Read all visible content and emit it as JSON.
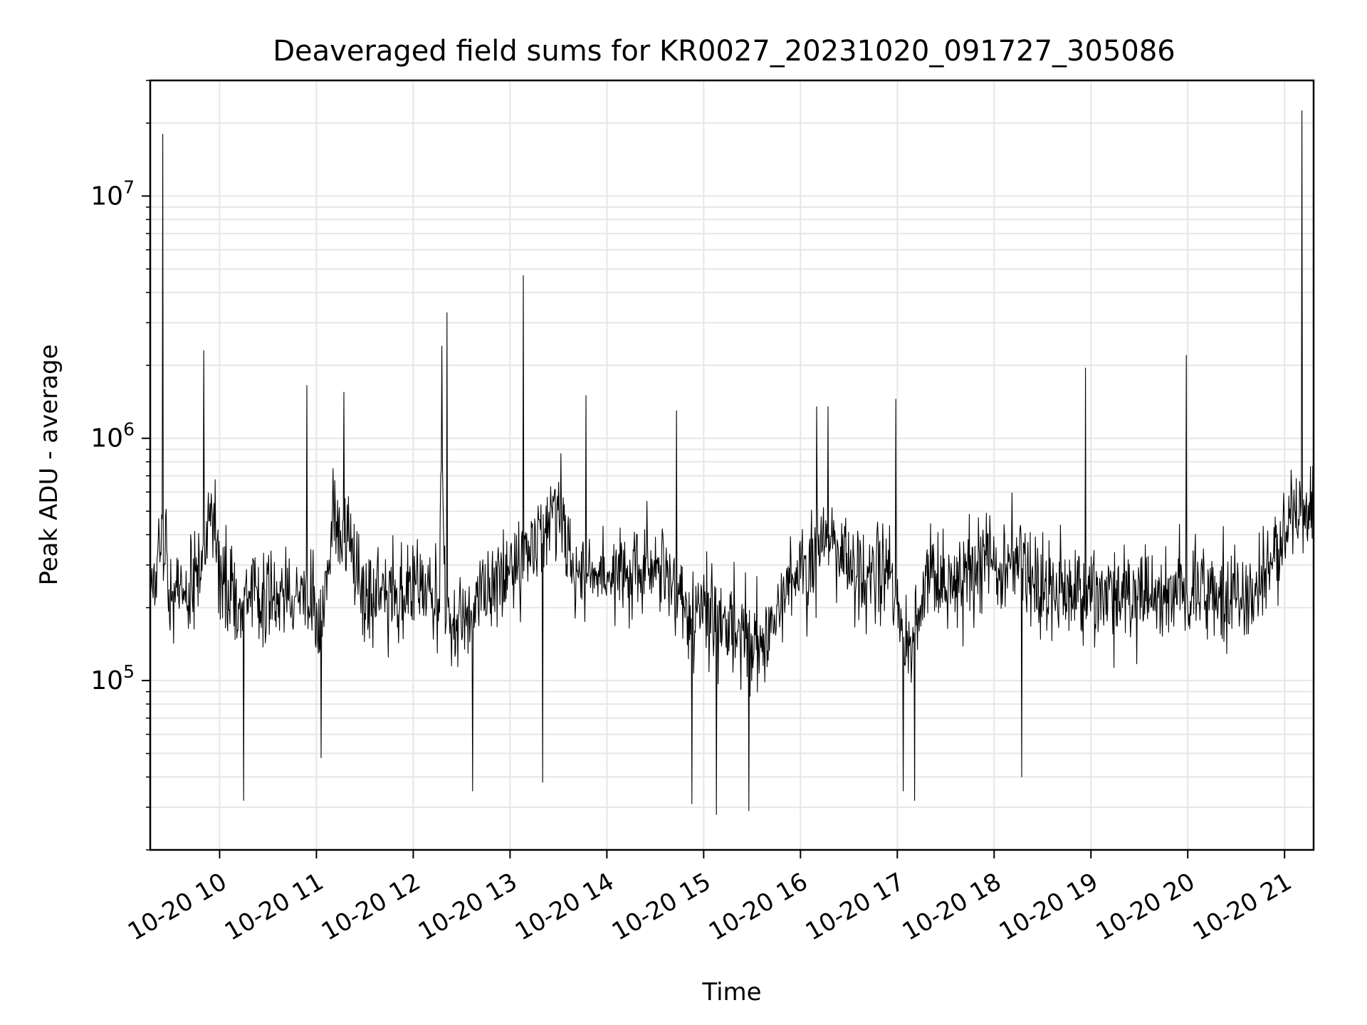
{
  "chart_data": {
    "type": "line",
    "title": "Deaveraged field sums for KR0027_20231020_091727_305086",
    "xlabel": "Time",
    "ylabel": "Peak ADU - average",
    "yscale": "log",
    "xlim": [
      "2023-10-20 09:17",
      "2023-10-20 21:18"
    ],
    "ylim": [
      20000,
      30000000
    ],
    "grid": true,
    "line_color": "#000000",
    "x_tick_labels": [
      "10-20 10",
      "10-20 11",
      "10-20 12",
      "10-20 13",
      "10-20 14",
      "10-20 15",
      "10-20 16",
      "10-20 17",
      "10-20 18",
      "10-20 19",
      "10-20 20",
      "10-20 21"
    ],
    "y_tick_labels": [
      {
        "base": "10",
        "exp": "5"
      },
      {
        "base": "10",
        "exp": "6"
      },
      {
        "base": "10",
        "exp": "7"
      }
    ],
    "series": [
      {
        "x": [
          "2023-10-20 09:17",
          "2023-10-20 09:20",
          "2023-10-20 09:23",
          "2023-10-20 09:25",
          "2023-10-20 09:27",
          "2023-10-20 09:30",
          "2023-10-20 09:33",
          "2023-10-20 09:36",
          "2023-10-20 09:40",
          "2023-10-20 09:45",
          "2023-10-20 09:50",
          "2023-10-20 09:55",
          "2023-10-20 10:00",
          "2023-10-20 10:10",
          "2023-10-20 10:15",
          "2023-10-20 10:25",
          "2023-10-20 10:40",
          "2023-10-20 10:50",
          "2023-10-20 10:55",
          "2023-10-20 11:03",
          "2023-10-20 11:10",
          "2023-10-20 11:20",
          "2023-10-20 11:30",
          "2023-10-20 11:40",
          "2023-10-20 11:55",
          "2023-10-20 12:10",
          "2023-10-20 12:15",
          "2023-10-20 12:18",
          "2023-10-20 12:20",
          "2023-10-20 12:25",
          "2023-10-20 12:35",
          "2023-10-20 12:50",
          "2023-10-20 13:00",
          "2023-10-20 13:08",
          "2023-10-20 13:20",
          "2023-10-20 13:30",
          "2023-10-20 13:40",
          "2023-10-20 13:50",
          "2023-10-20 14:00",
          "2023-10-20 14:10",
          "2023-10-20 14:20",
          "2023-10-20 14:30",
          "2023-10-20 14:40",
          "2023-10-20 14:50",
          "2023-10-20 15:00",
          "2023-10-20 15:10",
          "2023-10-20 15:20",
          "2023-10-20 15:30",
          "2023-10-20 15:45",
          "2023-10-20 16:00",
          "2023-10-20 16:05",
          "2023-10-20 16:15",
          "2023-10-20 16:25",
          "2023-10-20 16:35",
          "2023-10-20 16:45",
          "2023-10-20 16:55",
          "2023-10-20 17:05",
          "2023-10-20 17:10",
          "2023-10-20 17:20",
          "2023-10-20 17:35",
          "2023-10-20 17:50",
          "2023-10-20 18:00",
          "2023-10-20 18:15",
          "2023-10-20 18:30",
          "2023-10-20 18:45",
          "2023-10-20 19:00",
          "2023-10-20 19:15",
          "2023-10-20 19:30",
          "2023-10-20 19:45",
          "2023-10-20 20:00",
          "2023-10-20 20:15",
          "2023-10-20 20:30",
          "2023-10-20 20:45",
          "2023-10-20 20:55",
          "2023-10-20 21:05",
          "2023-10-20 21:15",
          "2023-10-20 21:18"
        ],
        "y": [
          300000,
          260000,
          350000,
          330000,
          290000,
          240000,
          230000,
          250000,
          230000,
          260000,
          320000,
          600000,
          270000,
          200000,
          240000,
          220000,
          230000,
          240000,
          200000,
          190000,
          480000,
          350000,
          220000,
          230000,
          230000,
          230000,
          200000,
          700000,
          220000,
          170000,
          190000,
          240000,
          260000,
          300000,
          450000,
          550000,
          280000,
          260000,
          280000,
          300000,
          280000,
          290000,
          260000,
          180000,
          220000,
          180000,
          170000,
          140000,
          180000,
          300000,
          260000,
          400000,
          320000,
          270000,
          300000,
          280000,
          130000,
          150000,
          280000,
          250000,
          290000,
          280000,
          300000,
          230000,
          240000,
          220000,
          230000,
          220000,
          230000,
          240000,
          230000,
          220000,
          240000,
          350000,
          550000,
          520000,
          600000
        ]
      }
    ],
    "spikes": [
      {
        "x": "2023-10-20 09:25",
        "y": 18000000
      },
      {
        "x": "2023-10-20 09:50",
        "y": 2300000
      },
      {
        "x": "2023-10-20 10:54",
        "y": 1650000
      },
      {
        "x": "2023-10-20 11:17",
        "y": 1550000
      },
      {
        "x": "2023-10-20 12:18",
        "y": 2400000
      },
      {
        "x": "2023-10-20 12:21",
        "y": 3300000
      },
      {
        "x": "2023-10-20 13:08",
        "y": 4700000
      },
      {
        "x": "2023-10-20 13:47",
        "y": 1500000
      },
      {
        "x": "2023-10-20 14:43",
        "y": 1300000
      },
      {
        "x": "2023-10-20 16:10",
        "y": 1350000
      },
      {
        "x": "2023-10-20 16:17",
        "y": 1350000
      },
      {
        "x": "2023-10-20 16:59",
        "y": 1450000
      },
      {
        "x": "2023-10-20 18:57",
        "y": 1950000
      },
      {
        "x": "2023-10-20 19:59",
        "y": 2200000
      },
      {
        "x": "2023-10-20 21:11",
        "y": 22500000
      }
    ],
    "dips": [
      {
        "x": "2023-10-20 10:15",
        "y": 32000
      },
      {
        "x": "2023-10-20 11:03",
        "y": 48000
      },
      {
        "x": "2023-10-20 12:37",
        "y": 35000
      },
      {
        "x": "2023-10-20 13:20",
        "y": 38000
      },
      {
        "x": "2023-10-20 14:53",
        "y": 31000
      },
      {
        "x": "2023-10-20 15:08",
        "y": 28000
      },
      {
        "x": "2023-10-20 15:28",
        "y": 29000
      },
      {
        "x": "2023-10-20 17:04",
        "y": 35000
      },
      {
        "x": "2023-10-20 17:11",
        "y": 32000
      },
      {
        "x": "2023-10-20 18:17",
        "y": 40000
      }
    ]
  }
}
